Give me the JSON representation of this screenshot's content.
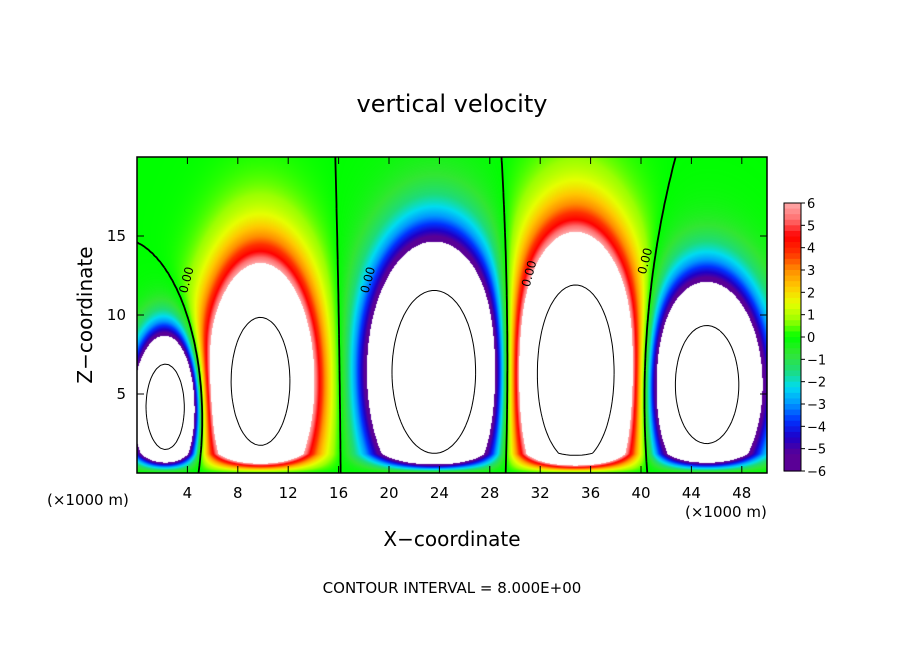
{
  "chart_data": {
    "type": "heatmap",
    "title": "vertical velocity",
    "xlabel": "X−coordinate",
    "ylabel": "Z−coordinate",
    "x_unit_left": "(×1000 m)",
    "x_unit_right": "(×1000 m)",
    "footer": "CONTOUR INTERVAL = 8.000E+00",
    "xlim": [
      0,
      50
    ],
    "ylim": [
      0,
      20
    ],
    "x_ticks": [
      4,
      8,
      12,
      16,
      20,
      24,
      28,
      32,
      36,
      40,
      44,
      48
    ],
    "x_tick_labels": [
      "4",
      "8",
      "12",
      "16",
      "20",
      "24",
      "28",
      "32",
      "36",
      "40",
      "44",
      "48"
    ],
    "y_ticks": [
      5,
      10,
      15
    ],
    "y_tick_labels": [
      "5",
      "10",
      "15"
    ],
    "colorbar": {
      "min": -6,
      "max": 6,
      "labels": [
        "6",
        "5",
        "4",
        "3",
        "2",
        "1",
        "0",
        "−1",
        "−2",
        "−3",
        "−4",
        "−5",
        "−6"
      ],
      "colors": [
        "#5a0096",
        "#5a0096",
        "#1e00c8",
        "#0032ff",
        "#0096ff",
        "#00dcf0",
        "#1edc78",
        "#32e632",
        "#00ff00",
        "#9bff00",
        "#e6ff00",
        "#ffc800",
        "#ff8c00",
        "#ff3200",
        "#ff0000",
        "#ff6e6e",
        "#ffaaaa"
      ]
    },
    "contour_labels": [
      {
        "text": "0.00",
        "x": 4.0,
        "y": 12.2
      },
      {
        "text": "0.00",
        "x": 18.4,
        "y": 12.2
      },
      {
        "text": "0.00",
        "x": 31.2,
        "y": 12.6
      },
      {
        "text": "0.00",
        "x": 40.4,
        "y": 13.4
      }
    ],
    "cells": [
      {
        "x": 2.3,
        "y": 4.2,
        "w": -28,
        "sx": 1.5,
        "sy": 2.6
      },
      {
        "x": 9.8,
        "y": 5.8,
        "w": 24,
        "sx": 2.6,
        "sy": 4.5
      },
      {
        "x": 23.6,
        "y": 6.4,
        "w": -30,
        "sx": 3.0,
        "sy": 4.6
      },
      {
        "x": 34.8,
        "y": 6.3,
        "w": 30,
        "sx": 2.8,
        "sy": 5.0
      },
      {
        "x": 45.2,
        "y": 5.6,
        "w": -26,
        "sx": 2.6,
        "sy": 3.8
      }
    ]
  }
}
